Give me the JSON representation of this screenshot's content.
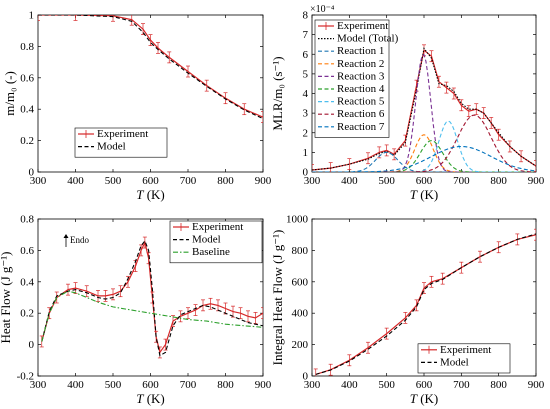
{
  "chart_data": [
    {
      "id": "a",
      "type": "line",
      "xlabel_var": "T",
      "xlabel_unit": "(K)",
      "ylabel": "m/m₀ (-)",
      "xlim": [
        300,
        900
      ],
      "ylim": [
        0,
        1
      ],
      "xticks": [
        "300",
        "400",
        "500",
        "600",
        "700",
        "800",
        "900"
      ],
      "yticks": [
        "0",
        "0.2",
        "0.4",
        "0.6",
        "0.8",
        "1"
      ],
      "legend": [
        "Experiment",
        "Model"
      ],
      "legend_position": "lower-left",
      "colors": {
        "experiment": "#d62728",
        "model": "#000000"
      },
      "series": [
        {
          "name": "Experiment",
          "style": "solid-errorbar",
          "x": [
            300,
            400,
            500,
            550,
            580,
            600,
            620,
            650,
            700,
            750,
            800,
            850,
            900
          ],
          "y": [
            1.0,
            1.0,
            0.995,
            0.97,
            0.91,
            0.84,
            0.79,
            0.73,
            0.64,
            0.55,
            0.47,
            0.4,
            0.35
          ]
        },
        {
          "name": "Model",
          "style": "dashed",
          "x": [
            300,
            400,
            500,
            550,
            580,
            600,
            620,
            650,
            700,
            750,
            800,
            850,
            900
          ],
          "y": [
            1.0,
            1.0,
            0.99,
            0.96,
            0.89,
            0.825,
            0.78,
            0.72,
            0.63,
            0.545,
            0.465,
            0.395,
            0.34
          ]
        }
      ]
    },
    {
      "id": "b",
      "type": "line",
      "xlabel_var": "T",
      "xlabel_unit": "(K)",
      "ylabel": "MLR/m₀ (s⁻¹)",
      "multiplier": "×10⁻⁴",
      "xlim": [
        300,
        900
      ],
      "ylim": [
        0,
        8
      ],
      "xticks": [
        "300",
        "400",
        "500",
        "600",
        "700",
        "800",
        "900"
      ],
      "yticks": [
        "0",
        "1",
        "2",
        "3",
        "4",
        "5",
        "6",
        "7",
        "8"
      ],
      "legend": [
        "Experiment",
        "Model (Total)",
        "Reaction 1",
        "Reaction 2",
        "Reaction 3",
        "Reaction 4",
        "Reaction 5",
        "Reaction 6",
        "Reaction 7"
      ],
      "legend_position": "top-left",
      "colors": {
        "experiment": "#d62728",
        "model": "#000000",
        "r1": "#1f77b4",
        "r2": "#ff7f0e",
        "r3": "#7b3294",
        "r4": "#2ca02c",
        "r5": "#4dbeee",
        "r6": "#a2142f",
        "r7": "#0072bd"
      },
      "series": [
        {
          "name": "Experiment",
          "style": "solid-errorbar",
          "x": [
            300,
            350,
            400,
            450,
            480,
            500,
            520,
            550,
            580,
            600,
            620,
            640,
            660,
            680,
            700,
            720,
            740,
            760,
            780,
            800,
            830,
            860,
            900
          ],
          "y": [
            0.1,
            0.2,
            0.4,
            0.7,
            1.0,
            1.1,
            0.9,
            1.6,
            4.4,
            6.2,
            5.9,
            4.6,
            4.3,
            4.0,
            3.4,
            3.1,
            3.2,
            3.0,
            2.5,
            1.9,
            1.3,
            0.8,
            0.3
          ]
        },
        {
          "name": "Model (Total)",
          "style": "dotted",
          "x": [
            300,
            350,
            400,
            450,
            480,
            500,
            520,
            550,
            580,
            600,
            620,
            640,
            660,
            680,
            700,
            720,
            740,
            760,
            780,
            800,
            830,
            860,
            900
          ],
          "y": [
            0.1,
            0.2,
            0.4,
            0.65,
            0.95,
            1.05,
            0.85,
            1.5,
            4.2,
            6.3,
            5.8,
            4.5,
            4.4,
            4.1,
            3.5,
            3.2,
            3.2,
            3.0,
            2.5,
            2.0,
            1.3,
            0.8,
            0.3
          ]
        },
        {
          "name": "Reaction 1",
          "style": "dashed",
          "peak_x": 500,
          "peak_y": 1.0,
          "width": 30
        },
        {
          "name": "Reaction 2",
          "style": "dashed",
          "peak_x": 600,
          "peak_y": 1.9,
          "width": 25
        },
        {
          "name": "Reaction 3",
          "style": "dashed",
          "peak_x": 598,
          "peak_y": 6.0,
          "width": 20
        },
        {
          "name": "Reaction 4",
          "style": "dashed",
          "peak_x": 620,
          "peak_y": 1.6,
          "width": 30
        },
        {
          "name": "Reaction 5",
          "style": "dashed",
          "peak_x": 665,
          "peak_y": 2.6,
          "width": 25
        },
        {
          "name": "Reaction 6",
          "style": "dashed",
          "peak_x": 735,
          "peak_y": 2.9,
          "width": 45
        },
        {
          "name": "Reaction 7",
          "style": "dashed",
          "peak_x": 700,
          "peak_y": 1.3,
          "width": 80
        }
      ]
    },
    {
      "id": "c",
      "type": "line",
      "xlabel_var": "T",
      "xlabel_unit": "(K)",
      "ylabel": "Heat Flow (J g⁻¹)",
      "annotation": "Endo",
      "xlim": [
        300,
        900
      ],
      "ylim": [
        -0.2,
        0.8
      ],
      "xticks": [
        "300",
        "400",
        "500",
        "600",
        "700",
        "800",
        "900"
      ],
      "yticks": [
        "-0.2",
        "0",
        "0.2",
        "0.4",
        "0.6",
        "0.8"
      ],
      "legend": [
        "Experiment",
        "Model",
        "Baseline"
      ],
      "legend_position": "top-right",
      "colors": {
        "experiment": "#d62728",
        "model": "#000000",
        "baseline": "#2ca02c"
      },
      "series": [
        {
          "name": "Experiment",
          "style": "solid-errorbar",
          "x": [
            310,
            330,
            350,
            380,
            400,
            430,
            460,
            480,
            500,
            520,
            540,
            560,
            575,
            585,
            595,
            605,
            615,
            625,
            640,
            660,
            680,
            700,
            720,
            740,
            760,
            780,
            800,
            820,
            840,
            860,
            880,
            900
          ],
          "y": [
            0.02,
            0.2,
            0.3,
            0.35,
            0.36,
            0.34,
            0.31,
            0.31,
            0.32,
            0.34,
            0.4,
            0.5,
            0.6,
            0.65,
            0.55,
            0.3,
            0.05,
            -0.05,
            0.0,
            0.15,
            0.18,
            0.2,
            0.22,
            0.25,
            0.26,
            0.25,
            0.23,
            0.21,
            0.2,
            0.18,
            0.17,
            0.2
          ]
        },
        {
          "name": "Model",
          "style": "dashed",
          "x": [
            310,
            330,
            350,
            380,
            400,
            430,
            460,
            480,
            500,
            520,
            540,
            560,
            575,
            585,
            595,
            605,
            615,
            625,
            640,
            660,
            680,
            700,
            720,
            740,
            760,
            780,
            800,
            820,
            840,
            860,
            880,
            900
          ],
          "y": [
            0.02,
            0.21,
            0.31,
            0.34,
            0.35,
            0.33,
            0.3,
            0.29,
            0.3,
            0.33,
            0.42,
            0.53,
            0.63,
            0.66,
            0.6,
            0.35,
            0.05,
            -0.07,
            -0.05,
            0.12,
            0.19,
            0.21,
            0.23,
            0.25,
            0.24,
            0.22,
            0.2,
            0.18,
            0.16,
            0.14,
            0.13,
            0.12
          ]
        },
        {
          "name": "Baseline",
          "style": "dash-dot",
          "x": [
            310,
            330,
            350,
            380,
            400,
            430,
            460,
            500,
            550,
            600,
            650,
            700,
            750,
            800,
            850,
            900
          ],
          "y": [
            0.02,
            0.2,
            0.3,
            0.34,
            0.33,
            0.3,
            0.27,
            0.24,
            0.22,
            0.2,
            0.18,
            0.16,
            0.15,
            0.13,
            0.12,
            0.11
          ]
        }
      ]
    },
    {
      "id": "d",
      "type": "line",
      "xlabel_var": "T",
      "xlabel_unit": "(K)",
      "ylabel": "Integral Heat Flow (J g⁻¹)",
      "xlim": [
        300,
        900
      ],
      "ylim": [
        0,
        1000
      ],
      "xticks": [
        "300",
        "400",
        "500",
        "600",
        "700",
        "800",
        "900"
      ],
      "yticks": [
        "0",
        "200",
        "400",
        "600",
        "800",
        "1000"
      ],
      "legend": [
        "Experiment",
        "Model"
      ],
      "legend_position": "lower-right",
      "colors": {
        "experiment": "#d62728",
        "model": "#000000"
      },
      "series": [
        {
          "name": "Experiment",
          "style": "solid-errorbar",
          "x": [
            310,
            350,
            400,
            450,
            500,
            550,
            580,
            600,
            620,
            650,
            700,
            750,
            800,
            850,
            900
          ],
          "y": [
            10,
            40,
            100,
            180,
            270,
            370,
            450,
            560,
            600,
            620,
            690,
            760,
            820,
            870,
            900
          ]
        },
        {
          "name": "Model",
          "style": "dashed",
          "x": [
            310,
            350,
            400,
            450,
            500,
            550,
            580,
            600,
            620,
            650,
            700,
            750,
            800,
            850,
            900
          ],
          "y": [
            10,
            38,
            95,
            170,
            255,
            355,
            440,
            550,
            590,
            615,
            690,
            760,
            820,
            870,
            905
          ]
        }
      ]
    }
  ]
}
